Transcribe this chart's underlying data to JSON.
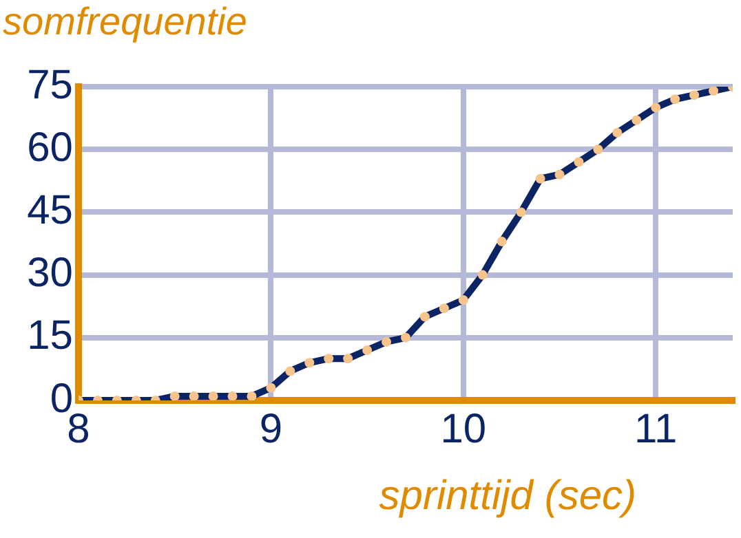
{
  "chart_data": {
    "type": "line",
    "title": "somfrequentie",
    "xlabel": "sprinttijd (sec)",
    "x": [
      8.0,
      8.1,
      8.2,
      8.3,
      8.4,
      8.5,
      8.6,
      8.7,
      8.8,
      8.9,
      9.0,
      9.1,
      9.2,
      9.3,
      9.4,
      9.5,
      9.6,
      9.7,
      9.8,
      9.9,
      10.0,
      10.1,
      10.2,
      10.3,
      10.4,
      10.5,
      10.6,
      10.7,
      10.8,
      10.9,
      11.0,
      11.1,
      11.2,
      11.3,
      11.4
    ],
    "series": [
      {
        "color": "#0b2463",
        "values": [
          0,
          0,
          0,
          0,
          0,
          1,
          1,
          1,
          1,
          1,
          3,
          7,
          9,
          10,
          10,
          12,
          14,
          15,
          20,
          22,
          24,
          30,
          38,
          45,
          53,
          54,
          57,
          60,
          64,
          67,
          70,
          72,
          73,
          74,
          75
        ]
      }
    ],
    "xlim": [
      8,
      11.4
    ],
    "xticks": [
      8,
      9,
      10,
      11
    ],
    "ylim": [
      0,
      75
    ],
    "yticks": [
      0,
      15,
      30,
      45,
      60,
      75
    ],
    "grid": true,
    "marker": "circle"
  }
}
